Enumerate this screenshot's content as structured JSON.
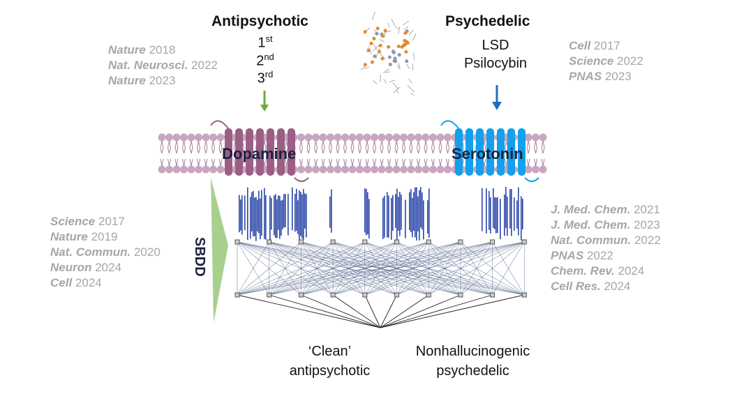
{
  "antipsychotic": {
    "title": "Antipsychotic",
    "generations": [
      {
        "n": "1",
        "sup": "st"
      },
      {
        "n": "2",
        "sup": "nd"
      },
      {
        "n": "3",
        "sup": "rd"
      }
    ],
    "arrow_color": "#6aaa3a"
  },
  "psychedelic": {
    "title": "Psychedelic",
    "drugs": [
      "LSD",
      "Psilocybin"
    ],
    "arrow_color": "#1f6fbf"
  },
  "receptors": {
    "dopamine": {
      "label": "Dopamine",
      "color": "#9b5f86"
    },
    "serotonin": {
      "label": "Serotonin",
      "color": "#13a0ec"
    },
    "membrane_color": "#c9a6bf"
  },
  "refs_top_left": [
    {
      "j": "Nature",
      "y": "2018"
    },
    {
      "j": "Nat. Neurosci.",
      "y": "2022"
    },
    {
      "j": "Nature",
      "y": "2023"
    }
  ],
  "refs_top_right": [
    {
      "j": "Cell",
      "y": "2017"
    },
    {
      "j": "Science",
      "y": "2022"
    },
    {
      "j": "PNAS",
      "y": "2023"
    }
  ],
  "refs_left": [
    {
      "j": "Science",
      "y": "2017"
    },
    {
      "j": "Nature",
      "y": "2019"
    },
    {
      "j": "Nat. Commun.",
      "y": "2020"
    },
    {
      "j": "Neuron",
      "y": "2024"
    },
    {
      "j": "Cell",
      "y": "2024"
    }
  ],
  "refs_right": [
    {
      "j": "J. Med. Chem.",
      "y": "2021"
    },
    {
      "j": "J. Med. Chem.",
      "y": "2023"
    },
    {
      "j": "Nat. Commun.",
      "y": "2022"
    },
    {
      "j": "PNAS",
      "y": "2022"
    },
    {
      "j": "Chem. Rev.",
      "y": "2024"
    },
    {
      "j": "Cell Res.",
      "y": "2024"
    }
  ],
  "sbdd_label": "SBDD",
  "outputs": [
    [
      "‘Clean’",
      "antipsychotic"
    ],
    [
      "Nonhallucinogenic",
      "psychedelic"
    ]
  ],
  "colors": {
    "network": "#4a5d85",
    "fingerprint": "#2a45a8",
    "sbdd_arrow": "#a8d08d"
  }
}
